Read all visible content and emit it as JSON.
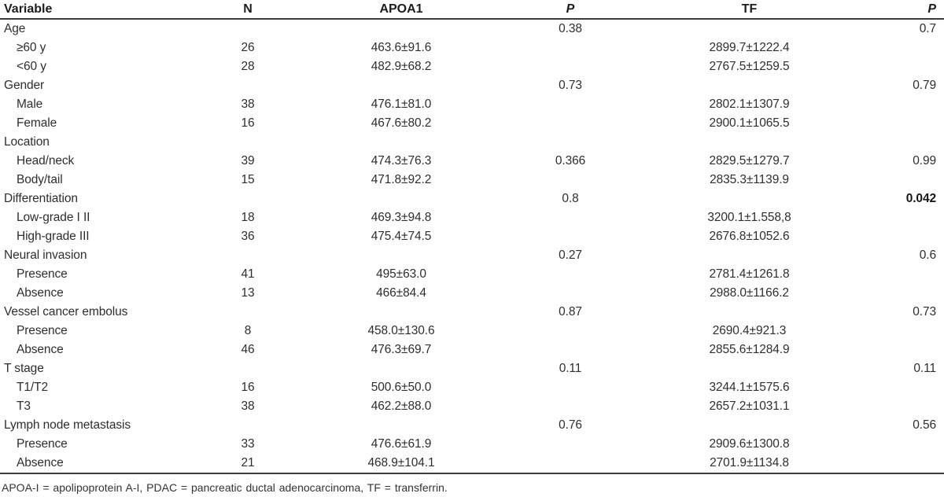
{
  "table": {
    "header": {
      "variable": "Variable",
      "n": "N",
      "apoa1": "APOA1",
      "p1": "P",
      "tf": "TF",
      "p2": "P"
    },
    "rows": [
      {
        "variable": "Age",
        "indent": 0,
        "n": "",
        "apoa1": "",
        "p1": "0.38",
        "tf": "",
        "p2": "0.7"
      },
      {
        "variable": "≥60 y",
        "indent": 1,
        "n": "26",
        "apoa1": "463.6±91.6",
        "p1": "",
        "tf": "2899.7±1222.4",
        "p2": ""
      },
      {
        "variable": "<60 y",
        "indent": 1,
        "n": "28",
        "apoa1": "482.9±68.2",
        "p1": "",
        "tf": "2767.5±1259.5",
        "p2": ""
      },
      {
        "variable": "Gender",
        "indent": 0,
        "n": "",
        "apoa1": "",
        "p1": "0.73",
        "tf": "",
        "p2": "0.79"
      },
      {
        "variable": "Male",
        "indent": 1,
        "n": "38",
        "apoa1": "476.1±81.0",
        "p1": "",
        "tf": "2802.1±1307.9",
        "p2": ""
      },
      {
        "variable": "Female",
        "indent": 1,
        "n": "16",
        "apoa1": "467.6±80.2",
        "p1": "",
        "tf": "2900.1±1065.5",
        "p2": ""
      },
      {
        "variable": "Location",
        "indent": 0,
        "n": "",
        "apoa1": "",
        "p1": "",
        "tf": "",
        "p2": ""
      },
      {
        "variable": "Head/neck",
        "indent": 1,
        "n": "39",
        "apoa1": "474.3±76.3",
        "p1": "0.366",
        "tf": "2829.5±1279.7",
        "p2": "0.99"
      },
      {
        "variable": "Body/tail",
        "indent": 1,
        "n": "15",
        "apoa1": "471.8±92.2",
        "p1": "",
        "tf": "2835.3±1139.9",
        "p2": ""
      },
      {
        "variable": "Differentiation",
        "indent": 0,
        "n": "",
        "apoa1": "",
        "p1": "0.8",
        "tf": "",
        "p2": "0.042",
        "p2_bold": true
      },
      {
        "variable": "Low-grade I II",
        "indent": 1,
        "n": "18",
        "apoa1": "469.3±94.8",
        "p1": "",
        "tf": "3200.1±1.558,8",
        "p2": ""
      },
      {
        "variable": "High-grade III",
        "indent": 1,
        "n": "36",
        "apoa1": "475.4±74.5",
        "p1": "",
        "tf": "2676.8±1052.6",
        "p2": ""
      },
      {
        "variable": "Neural invasion",
        "indent": 0,
        "n": "",
        "apoa1": "",
        "p1": "0.27",
        "tf": "",
        "p2": "0.6"
      },
      {
        "variable": "Presence",
        "indent": 1,
        "n": "41",
        "apoa1": "495±63.0",
        "p1": "",
        "tf": "2781.4±1261.8",
        "p2": ""
      },
      {
        "variable": "Absence",
        "indent": 1,
        "n": "13",
        "apoa1": "466±84.4",
        "p1": "",
        "tf": "2988.0±1166.2",
        "p2": ""
      },
      {
        "variable": "Vessel cancer embolus",
        "indent": 0,
        "n": "",
        "apoa1": "",
        "p1": "0.87",
        "tf": "",
        "p2": "0.73"
      },
      {
        "variable": "Presence",
        "indent": 1,
        "n": "8",
        "apoa1": "458.0±130.6",
        "p1": "",
        "tf": "2690.4±921.3",
        "p2": ""
      },
      {
        "variable": "Absence",
        "indent": 1,
        "n": "46",
        "apoa1": "476.3±69.7",
        "p1": "",
        "tf": "2855.6±1284.9",
        "p2": ""
      },
      {
        "variable": "T stage",
        "indent": 0,
        "n": "",
        "apoa1": "",
        "p1": "0.11",
        "tf": "",
        "p2": "0.11"
      },
      {
        "variable": "T1/T2",
        "indent": 1,
        "n": "16",
        "apoa1": "500.6±50.0",
        "p1": "",
        "tf": "3244.1±1575.6",
        "p2": ""
      },
      {
        "variable": "T3",
        "indent": 1,
        "n": "38",
        "apoa1": "462.2±88.0",
        "p1": "",
        "tf": "2657.2±1031.1",
        "p2": ""
      },
      {
        "variable": "Lymph node metastasis",
        "indent": 0,
        "n": "",
        "apoa1": "",
        "p1": "0.76",
        "tf": "",
        "p2": "0.56"
      },
      {
        "variable": "Presence",
        "indent": 1,
        "n": "33",
        "apoa1": "476.6±61.9",
        "p1": "",
        "tf": "2909.6±1300.8",
        "p2": ""
      },
      {
        "variable": "Absence",
        "indent": 1,
        "n": "21",
        "apoa1": "468.9±104.1",
        "p1": "",
        "tf": "2701.9±1134.8",
        "p2": ""
      }
    ],
    "footnote": "APOA-I = apolipoprotein A-I, PDAC = pancreatic ductal adenocarcinoma, TF = transferrin."
  }
}
